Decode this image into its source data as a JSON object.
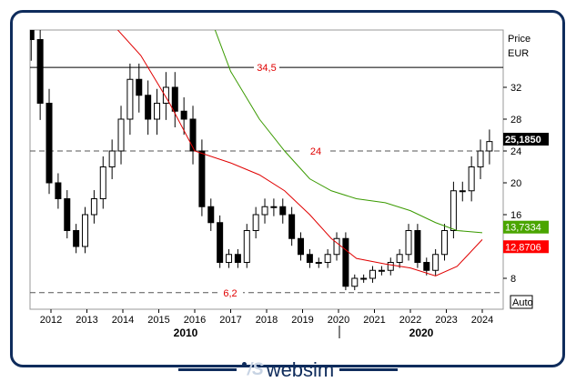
{
  "chart_data": {
    "type": "candlestick",
    "ylabel": "Price",
    "unit": "EUR",
    "ylim": [
      5,
      40
    ],
    "xlim": [
      2011.4,
      2024.6
    ],
    "yticks": [
      8,
      16,
      20,
      24,
      28,
      32
    ],
    "xticks": [
      "2012",
      "2013",
      "2014",
      "2015",
      "2016",
      "2017",
      "2018",
      "2019",
      "2020",
      "2021",
      "2022",
      "2023",
      "2024"
    ],
    "decades": [
      "2010",
      "2020"
    ],
    "start": 2011.45,
    "step": 0.25,
    "closes": [
      38,
      30,
      20,
      18,
      14,
      12,
      16,
      18,
      22,
      24,
      28,
      33,
      31,
      28,
      30,
      32,
      29,
      28,
      24,
      17,
      15,
      10,
      11,
      10,
      14,
      16,
      17,
      17,
      16,
      13,
      11,
      10,
      10,
      11,
      13,
      7,
      8,
      8,
      9,
      9,
      10,
      11,
      14,
      10,
      9,
      11,
      14,
      19,
      19,
      22,
      24,
      25.185
    ],
    "hlines": [
      {
        "value": 34.5,
        "label": "34,5",
        "style": "solid"
      },
      {
        "value": 24,
        "label": "24",
        "style": "dashed"
      },
      {
        "value": 6.2,
        "label": "6,2",
        "style": "dashed"
      }
    ],
    "ma_red": {
      "x": [
        2013.7,
        2014.5,
        2015.3,
        2016,
        2017,
        2017.8,
        2018.5,
        2019.2,
        2019.8,
        2020.5,
        2021.3,
        2022,
        2022.7,
        2023.3,
        2024
      ],
      "y": [
        40,
        36,
        30,
        24,
        22.5,
        21,
        19,
        16,
        13,
        10.5,
        9.8,
        9.3,
        8.3,
        9.5,
        12.8706
      ],
      "color": "#e00000"
    },
    "ma_green": {
      "x": [
        2016.5,
        2017,
        2017.8,
        2018.5,
        2019.2,
        2019.8,
        2020.5,
        2021.3,
        2022,
        2022.7,
        2023.3,
        2024
      ],
      "y": [
        40,
        34,
        28,
        24,
        20.5,
        19,
        18,
        17.5,
        16.5,
        15,
        14,
        13.7334
      ],
      "color": "#3a9a00"
    },
    "last": {
      "value": "25,1850",
      "color": "#000000"
    },
    "ma_labels": [
      {
        "value": "13,7334",
        "color": "#4aa500"
      },
      {
        "value": "12,8706",
        "color": "#ff0000"
      }
    ],
    "auto_label": "Auto"
  },
  "brand": {
    "name": "websim",
    "mark": "/S"
  }
}
